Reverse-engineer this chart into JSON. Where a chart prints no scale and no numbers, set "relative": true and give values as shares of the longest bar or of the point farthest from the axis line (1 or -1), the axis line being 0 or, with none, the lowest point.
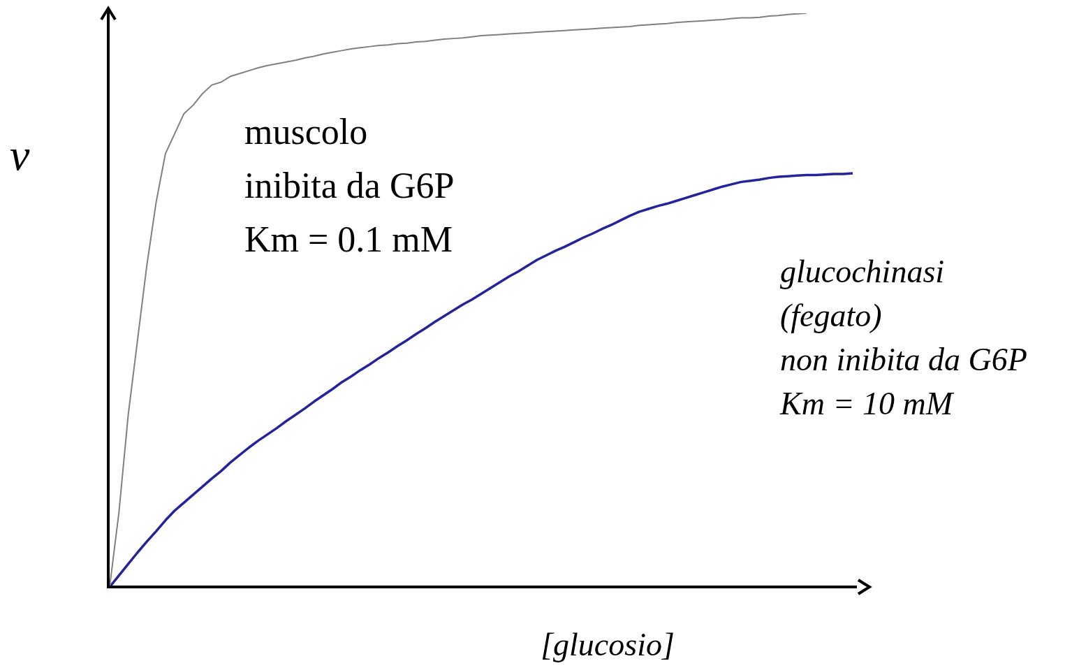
{
  "chart_data": {
    "type": "line",
    "relative": true,
    "xlabel": "[glucosio]",
    "ylabel": "v",
    "categories": [
      null,
      null,
      null,
      null,
      null,
      null,
      null,
      null,
      null,
      null,
      null,
      null,
      null,
      null,
      null,
      null,
      null,
      null,
      null,
      null,
      null,
      null,
      null,
      null,
      null,
      null,
      null,
      null,
      null,
      null,
      null,
      null,
      null,
      null,
      null,
      null,
      null,
      null,
      null,
      null,
      null,
      null,
      null,
      null,
      null,
      null,
      null,
      null,
      null,
      null,
      null,
      null,
      null,
      null,
      null,
      null,
      null,
      null,
      null,
      null,
      null,
      null,
      null,
      null,
      null,
      null,
      null,
      null,
      null,
      null,
      null,
      null,
      null,
      null,
      null,
      null,
      null,
      null,
      null,
      null,
      null
    ],
    "series": [
      {
        "name": "muscolo\ninibita da G6P\nKm = 0.1 mM",
        "color": "#808080",
        "values": [
          0,
          0.13,
          0.3,
          0.43,
          0.56,
          0.67,
          0.755,
          0.79,
          0.825,
          0.84,
          0.86,
          0.875,
          0.88,
          0.89,
          0.895,
          0.9,
          0.905,
          0.909,
          0.912,
          0.915,
          0.918,
          0.922,
          0.925,
          0.929,
          0.932,
          0.935,
          0.938,
          0.94,
          0.942,
          0.944,
          0.945,
          0.947,
          0.948,
          0.95,
          0.951,
          0.953,
          0.955,
          0.956,
          0.957,
          0.959,
          0.961,
          0.962,
          0.963,
          0.964,
          0.965,
          0.966,
          0.967,
          0.968,
          0.969,
          0.97,
          0.971,
          0.972,
          0.973,
          0.974,
          0.975,
          0.976,
          0.977,
          0.979,
          0.98,
          0.981,
          0.982,
          0.984,
          0.985,
          0.986,
          0.987,
          0.988,
          0.989,
          0.991,
          0.992,
          0.992,
          0.993,
          0.995,
          0.996,
          0.998,
          0.999,
          1,
          null,
          null,
          null,
          null,
          null
        ]
      },
      {
        "name": "glucochinasi\n(fegato)\nnon inibita da G6P\nKm = 10 mM",
        "color": "#23239b",
        "values": [
          0,
          0.02,
          0.04,
          0.06,
          0.079,
          0.097,
          0.116,
          0.133,
          0.147,
          0.161,
          0.175,
          0.189,
          0.202,
          0.217,
          0.23,
          0.243,
          0.255,
          0.266,
          0.277,
          0.289,
          0.3,
          0.311,
          0.323,
          0.334,
          0.345,
          0.357,
          0.367,
          0.378,
          0.388,
          0.399,
          0.409,
          0.42,
          0.43,
          0.441,
          0.451,
          0.462,
          0.472,
          0.482,
          0.492,
          0.501,
          0.511,
          0.521,
          0.531,
          0.541,
          0.55,
          0.56,
          0.57,
          0.578,
          0.586,
          0.593,
          0.601,
          0.609,
          0.616,
          0.624,
          0.631,
          0.639,
          0.647,
          0.654,
          0.659,
          0.664,
          0.668,
          0.673,
          0.678,
          0.683,
          0.688,
          0.693,
          0.698,
          0.702,
          0.706,
          0.708,
          0.71,
          0.713,
          0.715,
          0.716,
          0.717,
          0.718,
          0.718,
          0.719,
          0.72,
          0.72,
          0.721
        ]
      }
    ]
  }
}
